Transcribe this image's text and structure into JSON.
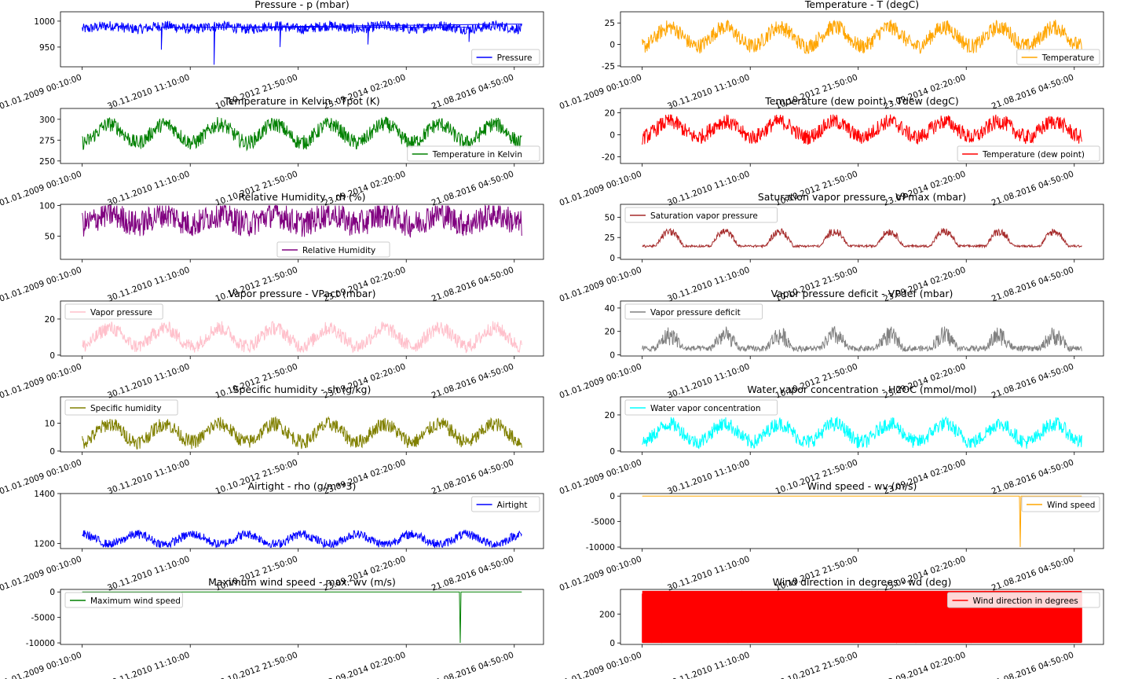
{
  "chart_data": [
    {
      "type": "line",
      "title": "Pressure - p (mbar)",
      "legend": "Pressure",
      "legend_loc": "lower-right",
      "color": "#0000ff",
      "ylim": [
        912,
        1018
      ],
      "yticks": [
        950,
        1000
      ],
      "series": {
        "base": 988,
        "amp": 3,
        "noise": 10,
        "spikes": [
          [
            0.3,
            916
          ],
          [
            0.45,
            950
          ],
          [
            0.18,
            945
          ],
          [
            0.65,
            955
          ],
          [
            0.88,
            960
          ]
        ],
        "range": [
          916,
          1016
        ]
      }
    },
    {
      "type": "line",
      "title": "Temperature - T (degC)",
      "legend": "Temperature",
      "legend_loc": "lower-right",
      "color": "#ffa500",
      "ylim": [
        -26,
        38
      ],
      "yticks": [
        -25,
        0,
        25
      ],
      "series": {
        "base": 9,
        "amp": 11,
        "noise": 9,
        "range": [
          -23,
          37
        ]
      }
    },
    {
      "type": "line",
      "title": "Temperature in Kelvin - Tpot (K)",
      "legend": "Temperature in Kelvin",
      "legend_loc": "lower-right",
      "color": "#008000",
      "ylim": [
        247,
        313
      ],
      "yticks": [
        250,
        275,
        300
      ],
      "series": {
        "base": 283,
        "amp": 11,
        "noise": 9,
        "range": [
          250,
          311
        ]
      }
    },
    {
      "type": "line",
      "title": "Temperature (dew point) - Tdew (degC)",
      "legend": "Temperature (dew point)",
      "legend_loc": "lower-right",
      "color": "#ff0000",
      "ylim": [
        -26,
        24
      ],
      "yticks": [
        -20,
        0,
        20
      ],
      "series": {
        "base": 5,
        "amp": 7,
        "noise": 7,
        "range": [
          -25,
          23
        ]
      }
    },
    {
      "type": "line",
      "title": "Relative Humidity - rh (%)",
      "legend": "Relative Humidity",
      "legend_loc": "lower-center",
      "color": "#800080",
      "ylim": [
        12,
        102
      ],
      "yticks": [
        50,
        100
      ],
      "series": {
        "base": 78,
        "amp": 8,
        "noise": 22,
        "range": [
          13,
          100
        ]
      }
    },
    {
      "type": "line",
      "title": "Saturation vapor pressure - VPmax (mbar)",
      "legend": "Saturation vapor pressure",
      "legend_loc": "upper-left",
      "color": "#a52a2a",
      "ylim": [
        -2,
        66
      ],
      "yticks": [
        0,
        25,
        50
      ],
      "series": {
        "base": 13,
        "amp": 9,
        "noise": 7,
        "range": [
          1,
          63
        ],
        "skewed": true
      }
    },
    {
      "type": "line",
      "title": "Vapor pressure - VPact (mbar)",
      "legend": "Vapor pressure",
      "legend_loc": "upper-left",
      "color": "#ffc0cb",
      "ylim": [
        -0.5,
        30
      ],
      "yticks": [
        0,
        20
      ],
      "series": {
        "base": 10,
        "amp": 5,
        "noise": 4,
        "range": [
          1,
          28
        ]
      }
    },
    {
      "type": "line",
      "title": "Vapor pressure deficit - VPdef (mbar)",
      "legend": "Vapor pressure deficit",
      "legend_loc": "upper-left",
      "color": "#808080",
      "ylim": [
        -1,
        46
      ],
      "yticks": [
        0,
        20,
        40
      ],
      "series": {
        "base": 3,
        "amp": 3,
        "noise": 12,
        "range": [
          0,
          44
        ],
        "skewed": true
      }
    },
    {
      "type": "line",
      "title": "Specific humidity - sh (g/kg)",
      "legend": "Specific humidity",
      "legend_loc": "upper-left",
      "color": "#808000",
      "ylim": [
        -0.3,
        19.5
      ],
      "yticks": [
        0,
        10
      ],
      "series": {
        "base": 6.5,
        "amp": 3.2,
        "noise": 2.6,
        "range": [
          0.5,
          18
        ]
      }
    },
    {
      "type": "line",
      "title": "Water vapor concentration - H2OC (mmol/mol)",
      "legend": "Water vapor concentration",
      "legend_loc": "upper-left",
      "color": "#00ffff",
      "ylim": [
        -0.5,
        30
      ],
      "yticks": [
        0,
        20
      ],
      "series": {
        "base": 10,
        "amp": 5,
        "noise": 4,
        "range": [
          1,
          29
        ]
      }
    },
    {
      "type": "line",
      "title": "Airtight - rho (g/m**3)",
      "legend": "Airtight",
      "legend_loc": "upper-right",
      "color": "#0000ff",
      "ylim": [
        1180,
        1400
      ],
      "yticks": [
        1200,
        1400
      ],
      "series": {
        "base": 1217,
        "amp": 20,
        "noise": 18,
        "range": [
          1185,
          1400
        ],
        "inverse": true
      }
    },
    {
      "type": "line",
      "title": "Wind speed - wv (m/s)",
      "legend": "Wind speed",
      "legend_loc": "upper-right",
      "color": "#ffa500",
      "ylim": [
        -10300,
        500
      ],
      "yticks": [
        -10000,
        -5000,
        0
      ],
      "series": {
        "flat": 2,
        "spike": [
          0.86,
          -9999
        ]
      }
    },
    {
      "type": "line",
      "title": "Maximum wind speed - max. wv (m/s)",
      "legend": "Maximum wind speed",
      "legend_loc": "upper-left",
      "color": "#008000",
      "ylim": [
        -10300,
        500
      ],
      "yticks": [
        -10000,
        -5000,
        0
      ],
      "series": {
        "flat": 3,
        "spike": [
          0.86,
          -9999
        ]
      }
    },
    {
      "type": "line",
      "title": "Wind direction in degrees - wd (deg)",
      "legend": "Wind direction in degrees",
      "legend_loc": "upper-right",
      "color": "#ff0000",
      "ylim": [
        -10,
        370
      ],
      "yticks": [
        0,
        200
      ],
      "series": {
        "fill": [
          0,
          360
        ]
      }
    }
  ],
  "xtick_labels": [
    "01.01.2009 00:10:00",
    "30.11.2010 11:10:00",
    "10.10.2012 21:50:00",
    "23.09.2014 02:20:00",
    "21.08.2016 04:50:00"
  ],
  "xtick_positions_frac": [
    0.0,
    0.2347,
    0.4693,
    0.704,
    0.9387
  ]
}
